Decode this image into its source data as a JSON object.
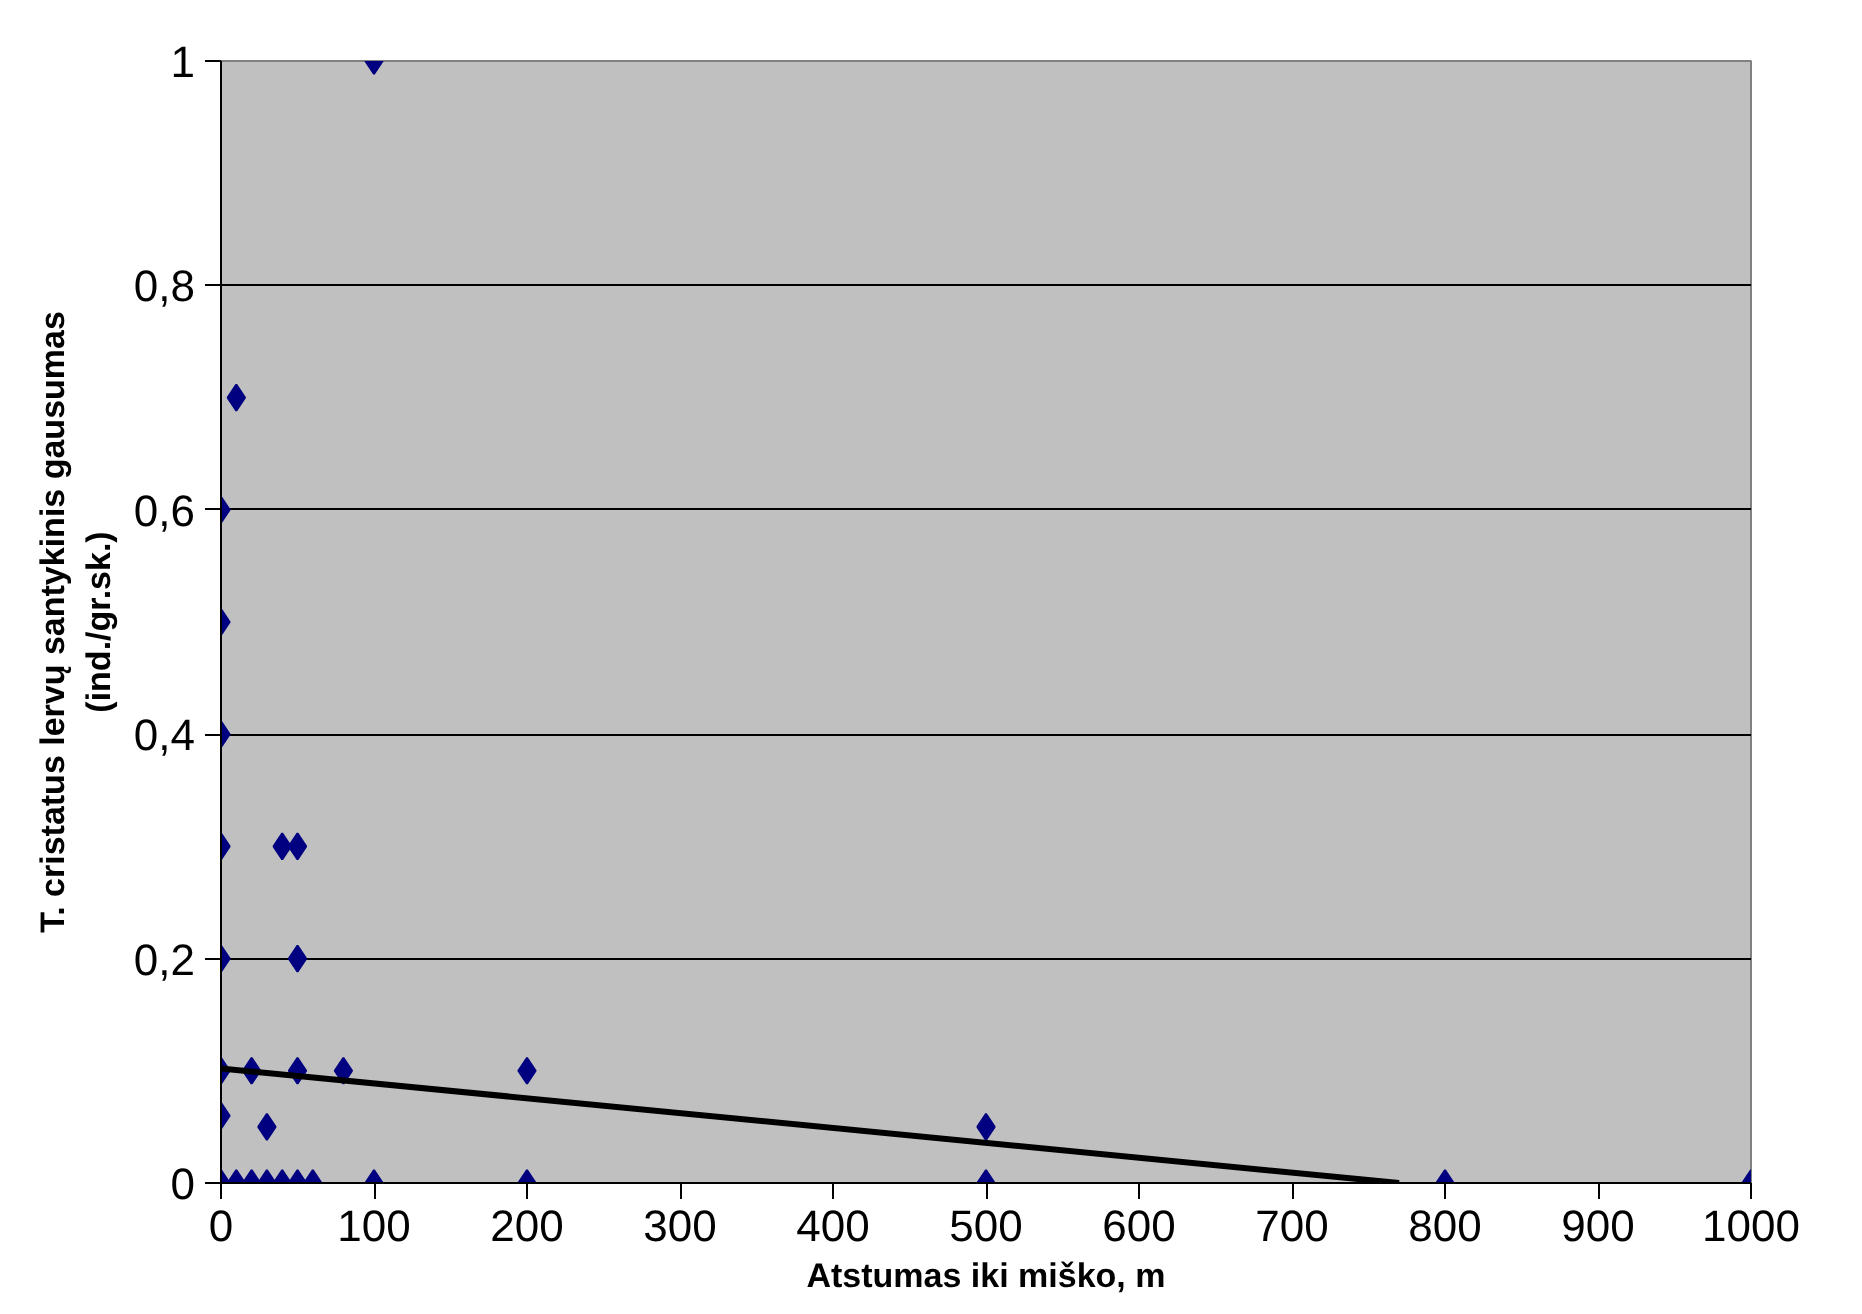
{
  "chart_data": {
    "type": "scatter",
    "xlabel": "Atstumas iki miško, m",
    "ylabel": "T. cristatus lervų santykinis gausumas\n(ind./gr.sk.)",
    "xlim": [
      0,
      1000
    ],
    "ylim": [
      0,
      1
    ],
    "xticks": [
      0,
      100,
      200,
      300,
      400,
      500,
      600,
      700,
      800,
      900,
      1000
    ],
    "yticks": [
      0,
      {
        "value": 0.2,
        "label": "0,2"
      },
      {
        "value": 0.4,
        "label": "0,4"
      },
      {
        "value": 0.6,
        "label": "0,6"
      },
      {
        "value": 0.8,
        "label": "0,8"
      },
      1
    ],
    "grid": "y",
    "marker": "diamond",
    "series": [
      {
        "color": "#000080",
        "x": [
          100,
          10,
          0,
          0,
          0,
          0,
          40,
          50,
          0,
          50,
          0,
          20,
          50,
          80,
          0,
          30,
          0,
          10,
          20,
          30,
          40,
          50,
          60,
          100,
          200,
          200,
          500,
          500,
          800,
          1000
        ],
        "values": [
          1,
          0.7,
          0.6,
          0.5,
          0.4,
          0.3,
          0.3,
          0.3,
          0.2,
          0.2,
          0.1,
          0.1,
          0.1,
          0.1,
          0.06,
          0.05,
          0,
          0,
          0,
          0,
          0,
          0,
          0,
          0,
          0.1,
          0,
          0.05,
          0,
          0,
          0
        ]
      },
      {
        "type": "line",
        "marker": "none",
        "color": "#000000",
        "x": [
          0,
          770
        ],
        "values": [
          0.102,
          0
        ]
      }
    ]
  }
}
